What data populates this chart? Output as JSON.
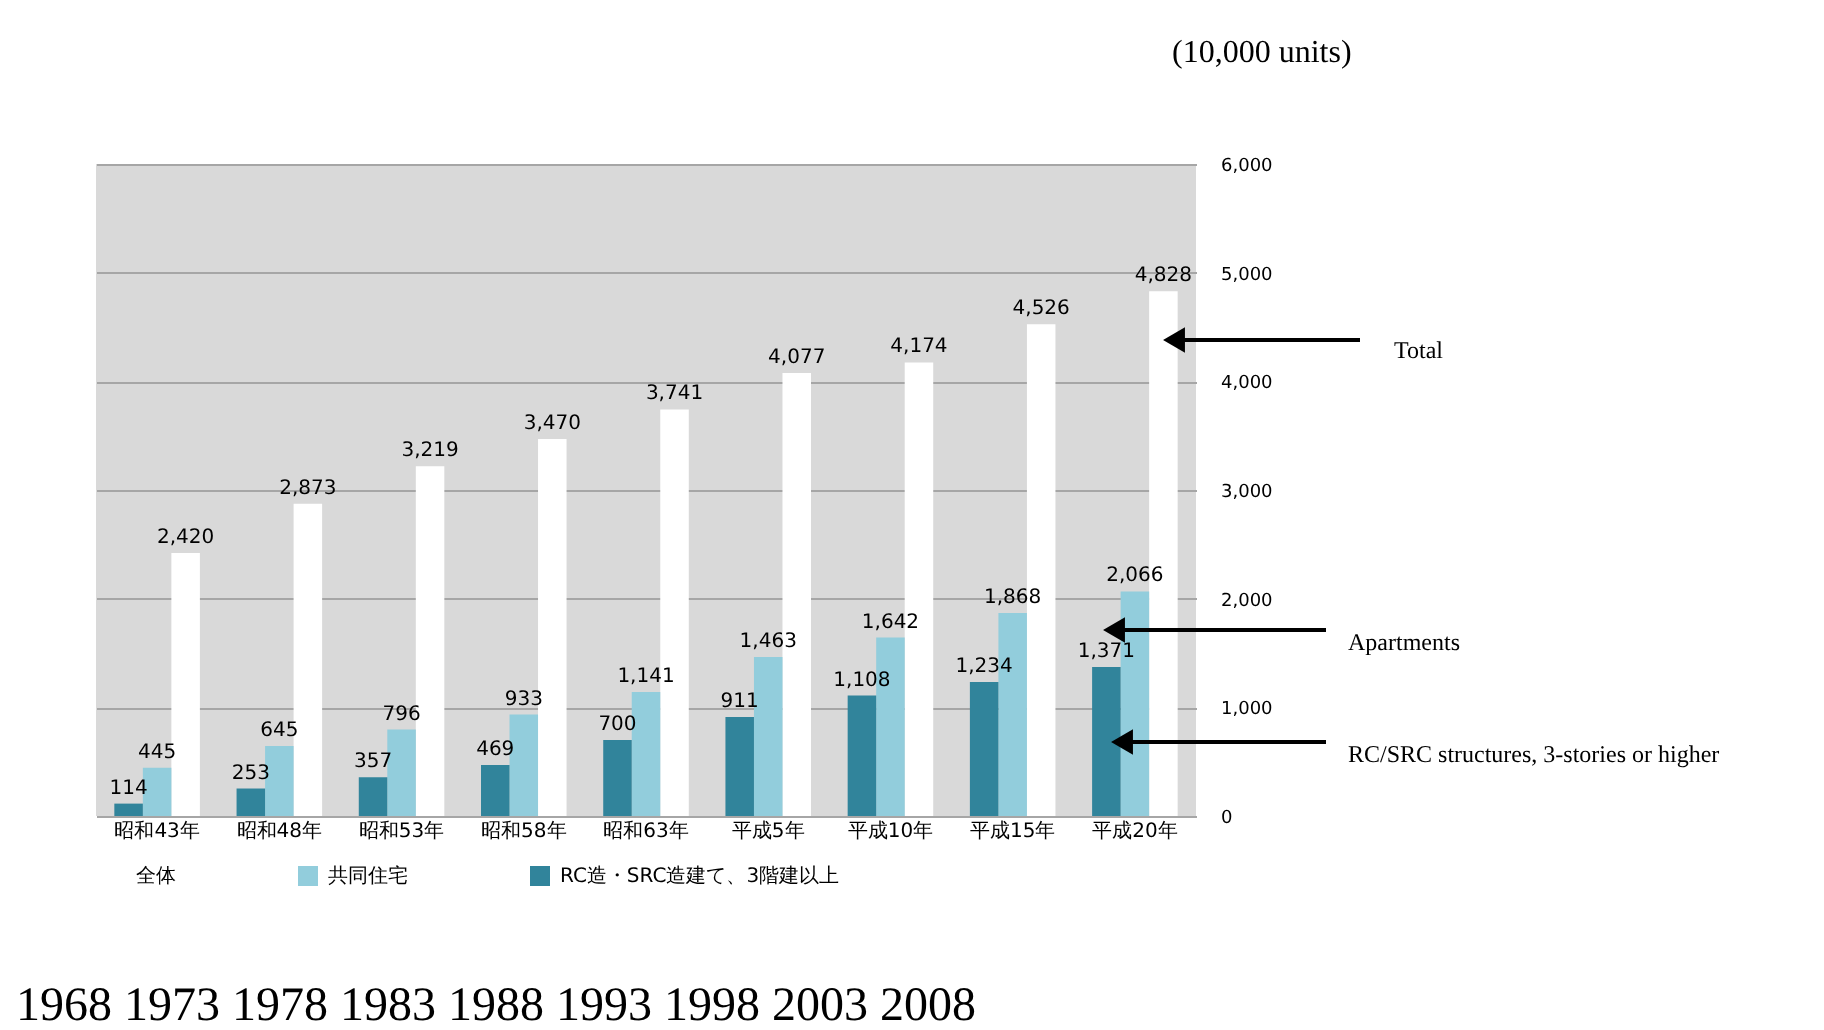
{
  "chart_data": {
    "type": "bar",
    "categories": [
      "昭和43年",
      "昭和48年",
      "昭和53年",
      "昭和58年",
      "昭和63年",
      "平成5年",
      "平成10年",
      "平成15年",
      "平成20年"
    ],
    "series": [
      {
        "name": "全体",
        "color": "#ffffff",
        "values": [
          2420,
          2873,
          3219,
          3470,
          3741,
          4077,
          4174,
          4526,
          4828
        ],
        "value_labels": [
          "2,420",
          "2,873",
          "3,219",
          "3,470",
          "3,741",
          "4,077",
          "4,174",
          "4,526",
          "4,828"
        ]
      },
      {
        "name": "共同住宅",
        "color": "#92cddc",
        "values": [
          445,
          645,
          796,
          933,
          1141,
          1463,
          1642,
          1868,
          2066
        ],
        "value_labels": [
          "445",
          "645",
          "796",
          "933",
          "1,141",
          "1,463",
          "1,642",
          "1,868",
          "2,066"
        ]
      },
      {
        "name": "RC造・SRC造建て、3階建以上",
        "color": "#31849b",
        "values": [
          114,
          253,
          357,
          469,
          700,
          911,
          1108,
          1234,
          1371
        ],
        "value_labels": [
          "114",
          "253",
          "357",
          "469",
          "700",
          "911",
          "1,108",
          "1,234",
          "1,371"
        ]
      }
    ],
    "ylim": [
      0,
      6000
    ],
    "yticks": [
      {
        "value": 0,
        "label": "0"
      },
      {
        "value": 1000,
        "label": "1,000"
      },
      {
        "value": 2000,
        "label": "2,000"
      },
      {
        "value": 3000,
        "label": "3,000"
      },
      {
        "value": 4000,
        "label": "4,000"
      },
      {
        "value": 5000,
        "label": "5,000"
      },
      {
        "value": 6000,
        "label": "6,000"
      }
    ],
    "grid": "y",
    "legend": "bottom",
    "annotations": [
      "(10,000 units)",
      "1968 1973 1978 1983 1988 1993 1998 2003 2008",
      "Total",
      "Apartments",
      "RC/SRC structures, 3-stories or higher"
    ]
  }
}
